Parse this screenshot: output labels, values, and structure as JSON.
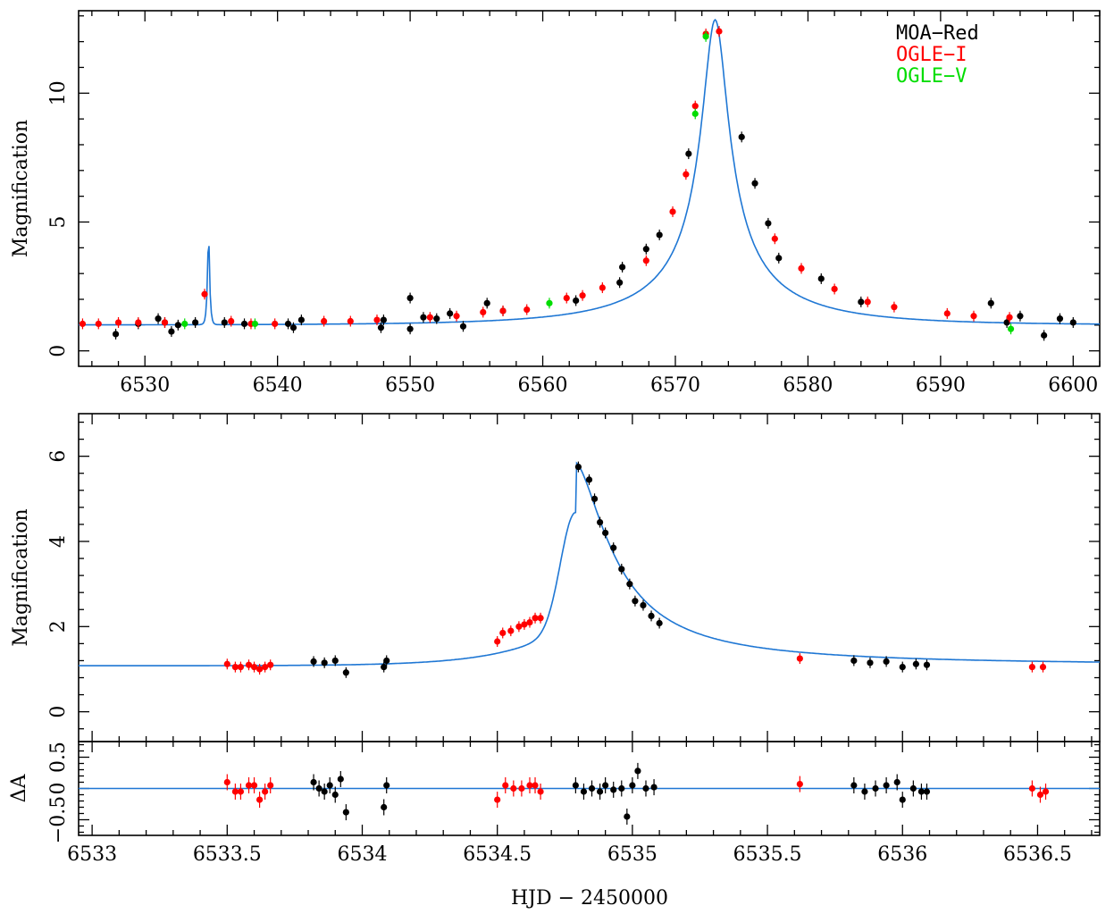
{
  "colors": {
    "model": "#1f77d4",
    "MOA-Red": "#000000",
    "OGLE-I": "#ff0000",
    "OGLE-V": "#00dd00"
  },
  "legend": [
    "MOA−Red",
    "OGLE−I",
    "OGLE−V"
  ],
  "xlabel": "HJD − 2450000",
  "chart_data": [
    {
      "type": "scatter",
      "panel": "top",
      "title": "",
      "ylabel": "Magnification",
      "xlim": [
        6525,
        6602
      ],
      "ylim": [
        -0.6,
        13.2
      ],
      "xticks": [
        6530,
        6540,
        6550,
        6560,
        6570,
        6580,
        6590,
        6600
      ],
      "yticks": [
        0,
        5,
        10
      ],
      "model": {
        "t0": 6573.0,
        "u0": 0.078,
        "tE": 12.5,
        "anomaly": {
          "t": 6534.8,
          "amp": 4.7,
          "width": 0.09
        }
      },
      "series": [
        {
          "name": "MOA−Red",
          "points": [
            [
              6527.8,
              0.65
            ],
            [
              6529.5,
              1.05
            ],
            [
              6531.0,
              1.25
            ],
            [
              6531.5,
              1.1
            ],
            [
              6532.0,
              0.75
            ],
            [
              6532.5,
              1.0
            ],
            [
              6533.8,
              1.1
            ],
            [
              6536.0,
              1.1
            ],
            [
              6537.5,
              1.05
            ],
            [
              6540.8,
              1.05
            ],
            [
              6541.2,
              0.9
            ],
            [
              6541.8,
              1.2
            ],
            [
              6547.8,
              0.9
            ],
            [
              6548.0,
              1.2
            ],
            [
              6550.0,
              2.05
            ],
            [
              6550.0,
              0.85
            ],
            [
              6551.0,
              1.3
            ],
            [
              6552.0,
              1.25
            ],
            [
              6553.0,
              1.45
            ],
            [
              6554.0,
              0.95
            ],
            [
              6555.8,
              1.85
            ],
            [
              6557.0,
              1.55
            ],
            [
              6562.5,
              1.95
            ],
            [
              6565.8,
              2.65
            ],
            [
              6566.0,
              3.25
            ],
            [
              6567.8,
              3.95
            ],
            [
              6568.8,
              4.5
            ],
            [
              6571.0,
              7.65
            ],
            [
              6575.0,
              8.3
            ],
            [
              6576.0,
              6.5
            ],
            [
              6577.0,
              4.95
            ],
            [
              6577.8,
              3.6
            ],
            [
              6581.0,
              2.8
            ],
            [
              6584.0,
              1.9
            ],
            [
              6593.8,
              1.85
            ],
            [
              6595.0,
              1.1
            ],
            [
              6596.0,
              1.35
            ],
            [
              6597.8,
              0.6
            ],
            [
              6599.0,
              1.25
            ],
            [
              6600.0,
              1.1
            ]
          ]
        },
        {
          "name": "OGLE−I",
          "points": [
            [
              6525.3,
              1.05
            ],
            [
              6526.5,
              1.05
            ],
            [
              6528.0,
              1.1
            ],
            [
              6529.5,
              1.1
            ],
            [
              6531.5,
              1.1
            ],
            [
              6534.5,
              2.2
            ],
            [
              6536.5,
              1.15
            ],
            [
              6538.0,
              1.05
            ],
            [
              6539.8,
              1.05
            ],
            [
              6543.5,
              1.15
            ],
            [
              6545.5,
              1.15
            ],
            [
              6547.5,
              1.2
            ],
            [
              6551.5,
              1.3
            ],
            [
              6553.5,
              1.35
            ],
            [
              6555.5,
              1.5
            ],
            [
              6557.0,
              1.55
            ],
            [
              6558.8,
              1.6
            ],
            [
              6561.8,
              2.05
            ],
            [
              6563.0,
              2.15
            ],
            [
              6564.5,
              2.45
            ],
            [
              6567.8,
              3.5
            ],
            [
              6569.8,
              5.4
            ],
            [
              6570.8,
              6.85
            ],
            [
              6571.5,
              9.5
            ],
            [
              6572.3,
              12.3
            ],
            [
              6573.3,
              12.4
            ],
            [
              6577.5,
              4.35
            ],
            [
              6579.5,
              3.2
            ],
            [
              6582.0,
              2.4
            ],
            [
              6584.5,
              1.9
            ],
            [
              6586.5,
              1.7
            ],
            [
              6590.5,
              1.45
            ],
            [
              6592.5,
              1.35
            ],
            [
              6595.2,
              1.3
            ]
          ]
        },
        {
          "name": "OGLE−V",
          "points": [
            [
              6533.0,
              1.05
            ],
            [
              6538.3,
              1.05
            ],
            [
              6560.5,
              1.85
            ],
            [
              6571.5,
              9.2
            ],
            [
              6572.3,
              12.2
            ],
            [
              6595.3,
              0.85
            ]
          ]
        }
      ]
    },
    {
      "type": "scatter",
      "panel": "middle",
      "title": "",
      "ylabel": "Magnification",
      "xlim": [
        6532.95,
        6536.73
      ],
      "ylim": [
        -0.7,
        7.0
      ],
      "xticks": [
        6533,
        6533.5,
        6534,
        6534.5,
        6535,
        6535.5,
        6536,
        6536.5
      ],
      "yticks": [
        0,
        2,
        4,
        6
      ],
      "model": {
        "base": 1.08,
        "peak": {
          "t": 6534.79,
          "A": 5.85
        }
      },
      "series": [
        {
          "name": "MOA−Red",
          "points": [
            [
              6533.82,
              1.18
            ],
            [
              6533.86,
              1.15
            ],
            [
              6533.9,
              1.2
            ],
            [
              6533.94,
              0.92
            ],
            [
              6534.08,
              1.05
            ],
            [
              6534.09,
              1.2
            ],
            [
              6534.8,
              5.75
            ],
            [
              6534.84,
              5.45
            ],
            [
              6534.86,
              5.0
            ],
            [
              6534.88,
              4.45
            ],
            [
              6534.9,
              4.2
            ],
            [
              6534.93,
              3.85
            ],
            [
              6534.96,
              3.35
            ],
            [
              6534.99,
              3.0
            ],
            [
              6535.01,
              2.6
            ],
            [
              6535.04,
              2.5
            ],
            [
              6535.07,
              2.25
            ],
            [
              6535.1,
              2.08
            ],
            [
              6535.82,
              1.2
            ],
            [
              6535.88,
              1.15
            ],
            [
              6535.94,
              1.18
            ],
            [
              6536.0,
              1.05
            ],
            [
              6536.05,
              1.12
            ],
            [
              6536.09,
              1.1
            ]
          ]
        },
        {
          "name": "OGLE−I",
          "points": [
            [
              6533.5,
              1.12
            ],
            [
              6533.53,
              1.05
            ],
            [
              6533.55,
              1.05
            ],
            [
              6533.58,
              1.1
            ],
            [
              6533.6,
              1.05
            ],
            [
              6533.62,
              1.0
            ],
            [
              6533.64,
              1.05
            ],
            [
              6533.66,
              1.1
            ],
            [
              6534.5,
              1.65
            ],
            [
              6534.52,
              1.85
            ],
            [
              6534.55,
              1.9
            ],
            [
              6534.58,
              2.0
            ],
            [
              6534.6,
              2.05
            ],
            [
              6534.62,
              2.1
            ],
            [
              6534.64,
              2.2
            ],
            [
              6534.66,
              2.2
            ],
            [
              6535.62,
              1.25
            ],
            [
              6536.48,
              1.05
            ],
            [
              6536.52,
              1.05
            ]
          ]
        }
      ]
    },
    {
      "type": "scatter",
      "panel": "residuals",
      "title": "",
      "ylabel": "ΔA",
      "xlim": [
        6532.95,
        6536.73
      ],
      "ylim": [
        -0.75,
        0.75
      ],
      "xticks": [
        6533,
        6533.5,
        6534,
        6534.5,
        6535,
        6535.5,
        6536,
        6536.5
      ],
      "yticks": [
        -0.5,
        0,
        0.5
      ],
      "series": [
        {
          "name": "MOA−Red",
          "points": [
            [
              6533.82,
              0.1
            ],
            [
              6533.84,
              0.0
            ],
            [
              6533.86,
              -0.05
            ],
            [
              6533.88,
              0.05
            ],
            [
              6533.9,
              -0.1
            ],
            [
              6533.92,
              0.15
            ],
            [
              6533.94,
              -0.38
            ],
            [
              6534.08,
              -0.3
            ],
            [
              6534.09,
              0.05
            ],
            [
              6534.79,
              0.05
            ],
            [
              6534.82,
              -0.05
            ],
            [
              6534.85,
              0.0
            ],
            [
              6534.88,
              -0.05
            ],
            [
              6534.9,
              0.05
            ],
            [
              6534.93,
              -0.02
            ],
            [
              6534.96,
              0.0
            ],
            [
              6534.98,
              -0.45
            ],
            [
              6535.0,
              0.05
            ],
            [
              6535.02,
              0.28
            ],
            [
              6535.05,
              0.0
            ],
            [
              6535.08,
              0.02
            ],
            [
              6535.82,
              0.05
            ],
            [
              6535.86,
              -0.05
            ],
            [
              6535.9,
              0.0
            ],
            [
              6535.94,
              0.05
            ],
            [
              6535.98,
              0.1
            ],
            [
              6536.0,
              -0.18
            ],
            [
              6536.04,
              0.0
            ],
            [
              6536.07,
              -0.05
            ],
            [
              6536.09,
              -0.05
            ]
          ]
        },
        {
          "name": "OGLE−I",
          "points": [
            [
              6533.5,
              0.1
            ],
            [
              6533.53,
              -0.05
            ],
            [
              6533.55,
              -0.05
            ],
            [
              6533.58,
              0.05
            ],
            [
              6533.6,
              0.05
            ],
            [
              6533.62,
              -0.18
            ],
            [
              6533.64,
              -0.05
            ],
            [
              6533.66,
              0.05
            ],
            [
              6534.5,
              -0.18
            ],
            [
              6534.53,
              0.05
            ],
            [
              6534.56,
              0.0
            ],
            [
              6534.59,
              0.0
            ],
            [
              6534.62,
              0.05
            ],
            [
              6534.64,
              0.05
            ],
            [
              6534.66,
              -0.05
            ],
            [
              6535.62,
              0.07
            ],
            [
              6536.48,
              0.0
            ],
            [
              6536.51,
              -0.1
            ],
            [
              6536.53,
              -0.05
            ]
          ]
        }
      ]
    }
  ]
}
